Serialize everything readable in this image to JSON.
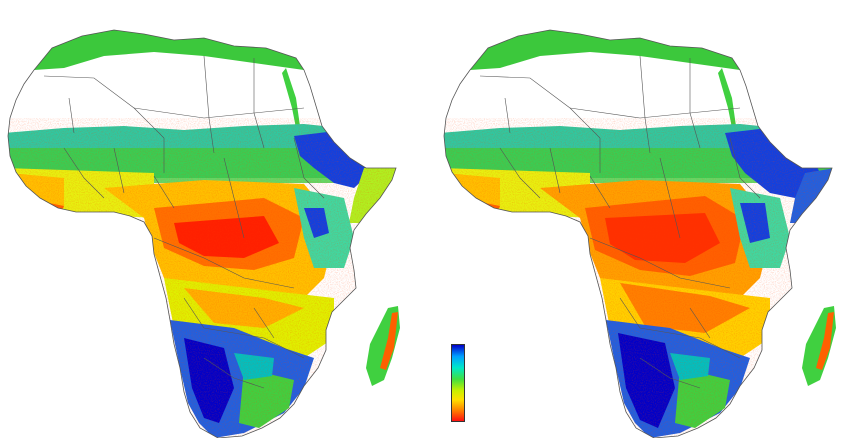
{
  "maps": [
    {
      "id": "left"
    },
    {
      "id": "right"
    }
  ],
  "legend": {
    "colorbar": [
      "#0000c8",
      "#00a0ff",
      "#00e8c8",
      "#40e040",
      "#c8f000",
      "#ffe000",
      "#ff8000",
      "#ff1010"
    ]
  },
  "colors": {
    "desert": "#ffffff",
    "sahel": "#3cc83c",
    "border": "#555555"
  }
}
